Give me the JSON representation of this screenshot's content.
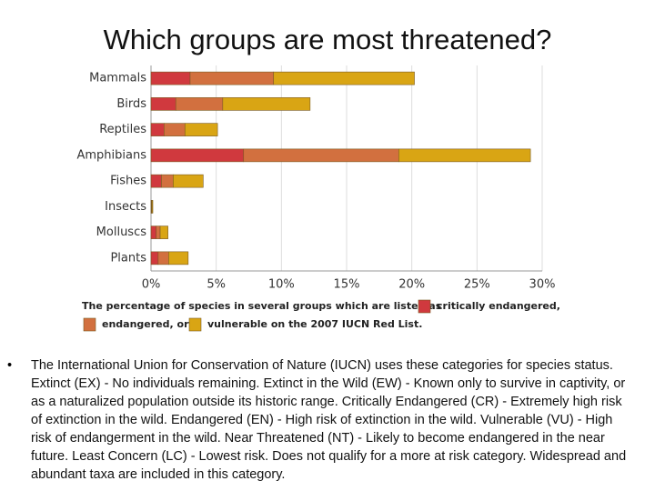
{
  "chart_data": {
    "type": "stacked-barh",
    "title": "Which groups are most threatened?",
    "categories": [
      "Mammals",
      "Birds",
      "Reptiles",
      "Amphibians",
      "Fishes",
      "Insects",
      "Molluscs",
      "Plants"
    ],
    "series": [
      {
        "name": "critically endangered,",
        "color": "#d0393e",
        "values": [
          3.0,
          1.9,
          1.0,
          7.1,
          0.8,
          0.03,
          0.4,
          0.55
        ]
      },
      {
        "name": "endangered, or",
        "color": "#d2703f",
        "values": [
          6.4,
          3.6,
          1.6,
          11.9,
          0.9,
          0.04,
          0.3,
          0.8
        ]
      },
      {
        "name": "vulnerable on the 2007 IUCN Red List.",
        "color": "#d9a514",
        "values": [
          10.8,
          6.7,
          2.5,
          10.1,
          2.3,
          0.07,
          0.6,
          1.5
        ]
      }
    ],
    "legend_intro": "The percentage of species in several groups which are listed as",
    "xlim": [
      0,
      30
    ],
    "xticks": [
      {
        "value": 0,
        "label": "0%"
      },
      {
        "value": 5,
        "label": "5%"
      },
      {
        "value": 10,
        "label": "10%"
      },
      {
        "value": 15,
        "label": "15%"
      },
      {
        "value": 20,
        "label": "20%"
      },
      {
        "value": 25,
        "label": "25%"
      },
      {
        "value": 30,
        "label": "30%"
      }
    ],
    "grid": true
  },
  "bullet": "The International Union for Conservation of Nature (IUCN) uses these categories for species status. Extinct (EX) - No individuals remaining. Extinct in the Wild (EW) - Known only to survive in captivity, or as a naturalized population outside its historic range. Critically Endangered (CR) - Extremely high risk of extinction in the wild. Endangered (EN) - High risk of extinction in the wild. Vulnerable (VU) - High risk of endangerment in the wild. Near Threatened (NT) - Likely to become endangered in the near future. Least Concern (LC) - Lowest risk. Does not qualify for a more at risk category. Widespread and abundant taxa are included in this category."
}
